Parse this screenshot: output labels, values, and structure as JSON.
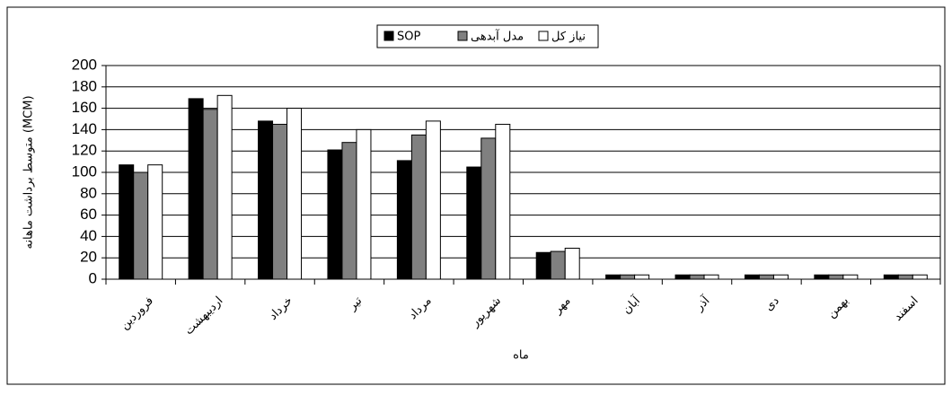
{
  "chart_data": {
    "type": "bar",
    "ylabel": "متوسط برداشت ماهانه (MCM)",
    "xlabel": "ماه",
    "categories": [
      "فروردین",
      "اردیبهشت",
      "خرداد",
      "تیر",
      "مرداد",
      "شهریور",
      "مهر",
      "آبان",
      "آذر",
      "دی",
      "بهمن",
      "اسفند"
    ],
    "series": [
      {
        "name": "SOP",
        "color": "#000000",
        "values": [
          107,
          169,
          148,
          121,
          111,
          105,
          25,
          4,
          4,
          4,
          4,
          4
        ]
      },
      {
        "name": "مدل آبدهی",
        "color": "#808080",
        "values": [
          100,
          159,
          145,
          128,
          135,
          132,
          26,
          4,
          4,
          4,
          4,
          4
        ]
      },
      {
        "name": "نیاز کل",
        "color": "#ffffff",
        "values": [
          107,
          172,
          160,
          140,
          148,
          145,
          29,
          4,
          4,
          4,
          4,
          4
        ]
      }
    ],
    "ylim": [
      0,
      200
    ],
    "yticks": [
      0,
      20,
      40,
      60,
      80,
      100,
      120,
      140,
      160,
      180,
      200
    ],
    "grid": true
  }
}
